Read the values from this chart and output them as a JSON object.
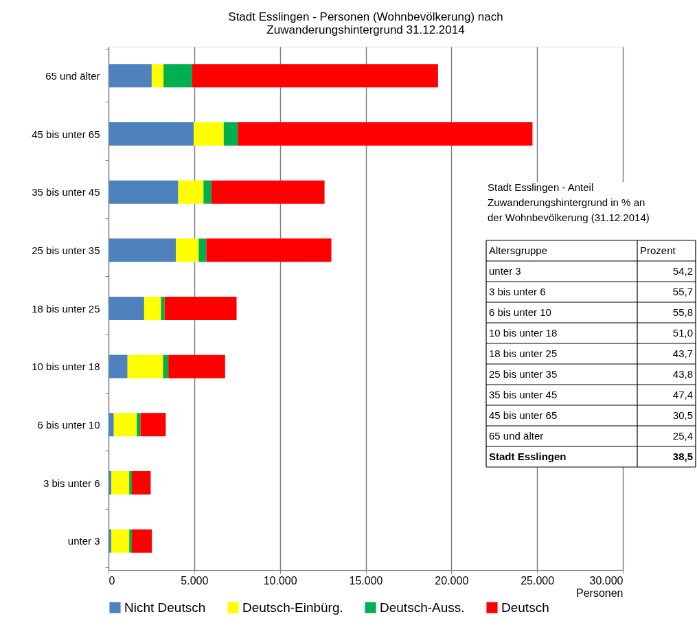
{
  "chart_data": [
    {
      "type": "bar",
      "orientation": "horizontal",
      "stacked": true,
      "title": "Stadt Esslingen - Personen (Wohnbevölkerung) nach\nZuwanderungshintergrund 31.12.2014",
      "xlabel": "Personen",
      "categories": [
        "65 und älter",
        "45 bis unter 65",
        "35 bis unter 45",
        "25 bis unter 35",
        "18 bis unter 25",
        "10 bis unter 18",
        "6 bis unter 10",
        "3 bis unter 6",
        "unter 3"
      ],
      "series": [
        {
          "name": "Nicht Deutsch",
          "color": "#4f81bd",
          "values": [
            2520,
            4970,
            4070,
            3930,
            2080,
            1110,
            310,
            160,
            160
          ]
        },
        {
          "name": "Deutsch-Einbürg.",
          "color": "#ffff00",
          "values": [
            690,
            1750,
            1470,
            1330,
            980,
            2070,
            1340,
            1050,
            1050
          ]
        },
        {
          "name": "Deutsch-Auss.",
          "color": "#00b050",
          "values": [
            1670,
            820,
            460,
            440,
            210,
            310,
            210,
            150,
            150
          ]
        },
        {
          "name": "Deutsch",
          "color": "#ff0000",
          "values": [
            14340,
            17190,
            6600,
            7300,
            4200,
            3310,
            1480,
            1100,
            1170
          ]
        }
      ],
      "xlim": [
        0,
        30000
      ],
      "xticks": [
        0,
        {
          "value": 5000,
          "label": "5.000"
        },
        {
          "value": 10000,
          "label": "10.000"
        },
        {
          "value": 15000,
          "label": "15.000"
        },
        {
          "value": 20000,
          "label": "20.000"
        },
        {
          "value": 25000,
          "label": "25.000"
        },
        {
          "value": 30000,
          "label": "30.000"
        }
      ],
      "grid": "x",
      "legend": "bottom"
    },
    {
      "type": "other",
      "title": "Stadt Esslingen - Anteil\nZuwanderungshintergrund in % an\nder Wohnbevölkerung (31.12.2014)",
      "xlabel": "Altersgruppe",
      "ylabel": "Prozent",
      "categories": [
        "unter 3",
        "3 bis unter 6",
        "6 bis unter 10",
        "10 bis unter 18",
        "18 bis unter 25",
        "25 bis unter 35",
        "35 bis unter 45",
        "45 bis unter 65",
        "65 und älter",
        "Stadt Esslingen"
      ],
      "value_labels": [
        "54,2",
        "55,7",
        "55,8",
        "51,0",
        "43,7",
        "43,8",
        "47,4",
        "30,5",
        "25,4",
        "38,5"
      ]
    }
  ]
}
